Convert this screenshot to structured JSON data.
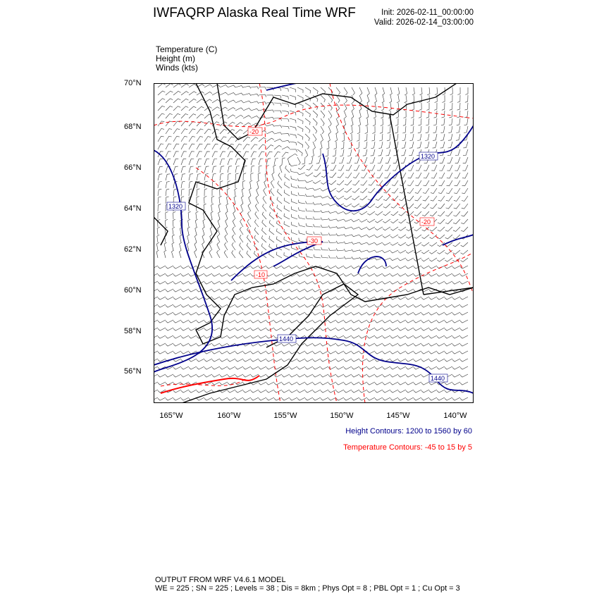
{
  "header": {
    "title": "IWFAQRP Alaska Real Time WRF",
    "init": "Init: 2026-02-11_00:00:00",
    "valid": "Valid: 2026-02-14_03:00:00"
  },
  "legend": {
    "temperature": "Temperature   (C)",
    "height": "Height   (m)",
    "winds": "Winds   (kts)"
  },
  "map": {
    "lat_ticks": [
      "70°N",
      "68°N",
      "66°N",
      "64°N",
      "62°N",
      "60°N",
      "58°N",
      "56°N"
    ],
    "lon_ticks": [
      "165°W",
      "160°W",
      "155°W",
      "150°W",
      "145°W",
      "140°W"
    ],
    "height_labels": [
      "1320",
      "1320",
      "1440",
      "1440"
    ],
    "temperature_labels": [
      "-20",
      "-30",
      "-10",
      "-20"
    ],
    "colors": {
      "height": "#00008b",
      "temperature": "#ff0000",
      "coast": "#000000",
      "barbs": "#000000"
    }
  },
  "captions": {
    "height": "Height Contours: 1200 to 1560 by 60",
    "temperature": "Temperature Contours: -45 to 15 by 5"
  },
  "footer": {
    "line1": "OUTPUT FROM WRF V4.6.1 MODEL",
    "line2": "WE = 225 ; SN = 225 ; Levels = 38 ; Dis = 8km ; Phys Opt = 8 ; PBL Opt = 1 ; Cu Opt = 3"
  }
}
